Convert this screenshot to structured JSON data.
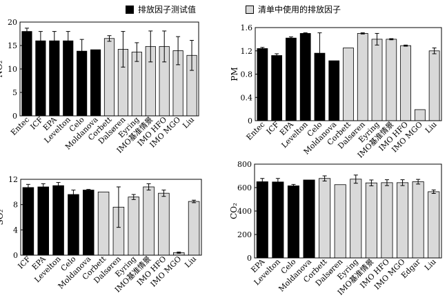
{
  "legend": {
    "measured_label": "排放因子测试值",
    "inventory_label": "清单中使用的排放因子",
    "measured_color": "#000000",
    "inventory_color": "#d9d9d9"
  },
  "chart_data": [
    {
      "type": "bar",
      "ylabel": "NO₂",
      "ylim": [
        0,
        20
      ],
      "yticks": [
        0,
        5,
        10,
        15,
        20
      ],
      "categories": [
        "Entec",
        "ICF",
        "EPA",
        "Levelton",
        "Celo",
        "Moldanova",
        "Corbett",
        "Dalsøren",
        "Eyring",
        "IMO基准情景",
        "IMO HFO",
        "IMO MGO",
        "Liu"
      ],
      "values": [
        18.0,
        16.0,
        16.0,
        16.0,
        13.8,
        14.1,
        16.5,
        14.2,
        13.6,
        14.8,
        14.8,
        13.9,
        12.9
      ],
      "errors": [
        0.7,
        2.0,
        2.0,
        2.0,
        2.5,
        0,
        0.6,
        3.8,
        2.0,
        3.3,
        3.3,
        3.0,
        3.2
      ],
      "groups": [
        "measured",
        "measured",
        "measured",
        "measured",
        "measured",
        "measured",
        "inventory",
        "inventory",
        "inventory",
        "inventory",
        "inventory",
        "inventory",
        "inventory"
      ]
    },
    {
      "type": "bar",
      "ylabel": "PM",
      "ylim": [
        0,
        1.6
      ],
      "yticks": [
        0,
        0.4,
        0.8,
        1.2,
        1.6
      ],
      "categories": [
        "Entec",
        "ICF",
        "EPA",
        "Levelton",
        "Celo",
        "Moldanova",
        "Corbett",
        "Dalsøren",
        "Eyring",
        "IMO基准情景",
        "IMO HFO",
        "IMO MGO",
        "Liu"
      ],
      "values": [
        1.24,
        1.12,
        1.42,
        1.5,
        1.16,
        1.03,
        1.25,
        1.5,
        1.4,
        1.4,
        1.29,
        0.19,
        1.2
      ],
      "errors": [
        0.02,
        0.03,
        0.02,
        0.01,
        0.35,
        0,
        0,
        0.01,
        0.1,
        0.01,
        0.01,
        0,
        0.05
      ],
      "groups": [
        "measured",
        "measured",
        "measured",
        "measured",
        "measured",
        "measured",
        "inventory",
        "inventory",
        "inventory",
        "inventory",
        "inventory",
        "inventory",
        "inventory"
      ]
    },
    {
      "type": "bar",
      "ylabel": "SO₂",
      "ylim": [
        0,
        12
      ],
      "yticks": [
        0,
        4,
        8,
        12
      ],
      "categories": [
        "ICF",
        "EPA",
        "Levelton",
        "Celo",
        "Moldanova",
        "Corbett",
        "Dalsøren",
        "Eyring",
        "IMO基准情景",
        "IMO HFO",
        "IMO MGO",
        "Liu"
      ],
      "values": [
        10.7,
        10.8,
        11.0,
        9.6,
        10.3,
        10.0,
        7.6,
        9.2,
        10.8,
        9.8,
        0.4,
        8.5
      ],
      "errors": [
        0.5,
        0.5,
        0.5,
        0.7,
        0.1,
        0,
        3.2,
        0.4,
        0.5,
        0.5,
        0.1,
        0.2
      ],
      "groups": [
        "measured",
        "measured",
        "measured",
        "measured",
        "measured",
        "inventory",
        "inventory",
        "inventory",
        "inventory",
        "inventory",
        "inventory",
        "inventory"
      ]
    },
    {
      "type": "bar",
      "ylabel": "CO₂",
      "ylim": [
        0,
        800
      ],
      "yticks": [
        0,
        200,
        400,
        600,
        800
      ],
      "categories": [
        "EPA",
        "Levelton",
        "Celo",
        "Moldanova",
        "Corbett",
        "Dalsøren",
        "Eyring",
        "IMO基准情景",
        "IMO HFO",
        "IMO MGO",
        "Edgar",
        "Liu"
      ],
      "values": [
        650,
        648,
        615,
        665,
        678,
        625,
        672,
        640,
        642,
        642,
        650,
        565
      ],
      "errors": [
        28,
        30,
        12,
        0,
        22,
        0,
        35,
        25,
        25,
        25,
        20,
        15
      ],
      "groups": [
        "measured",
        "measured",
        "measured",
        "measured",
        "inventory",
        "inventory",
        "inventory",
        "inventory",
        "inventory",
        "inventory",
        "inventory",
        "inventory"
      ]
    }
  ]
}
